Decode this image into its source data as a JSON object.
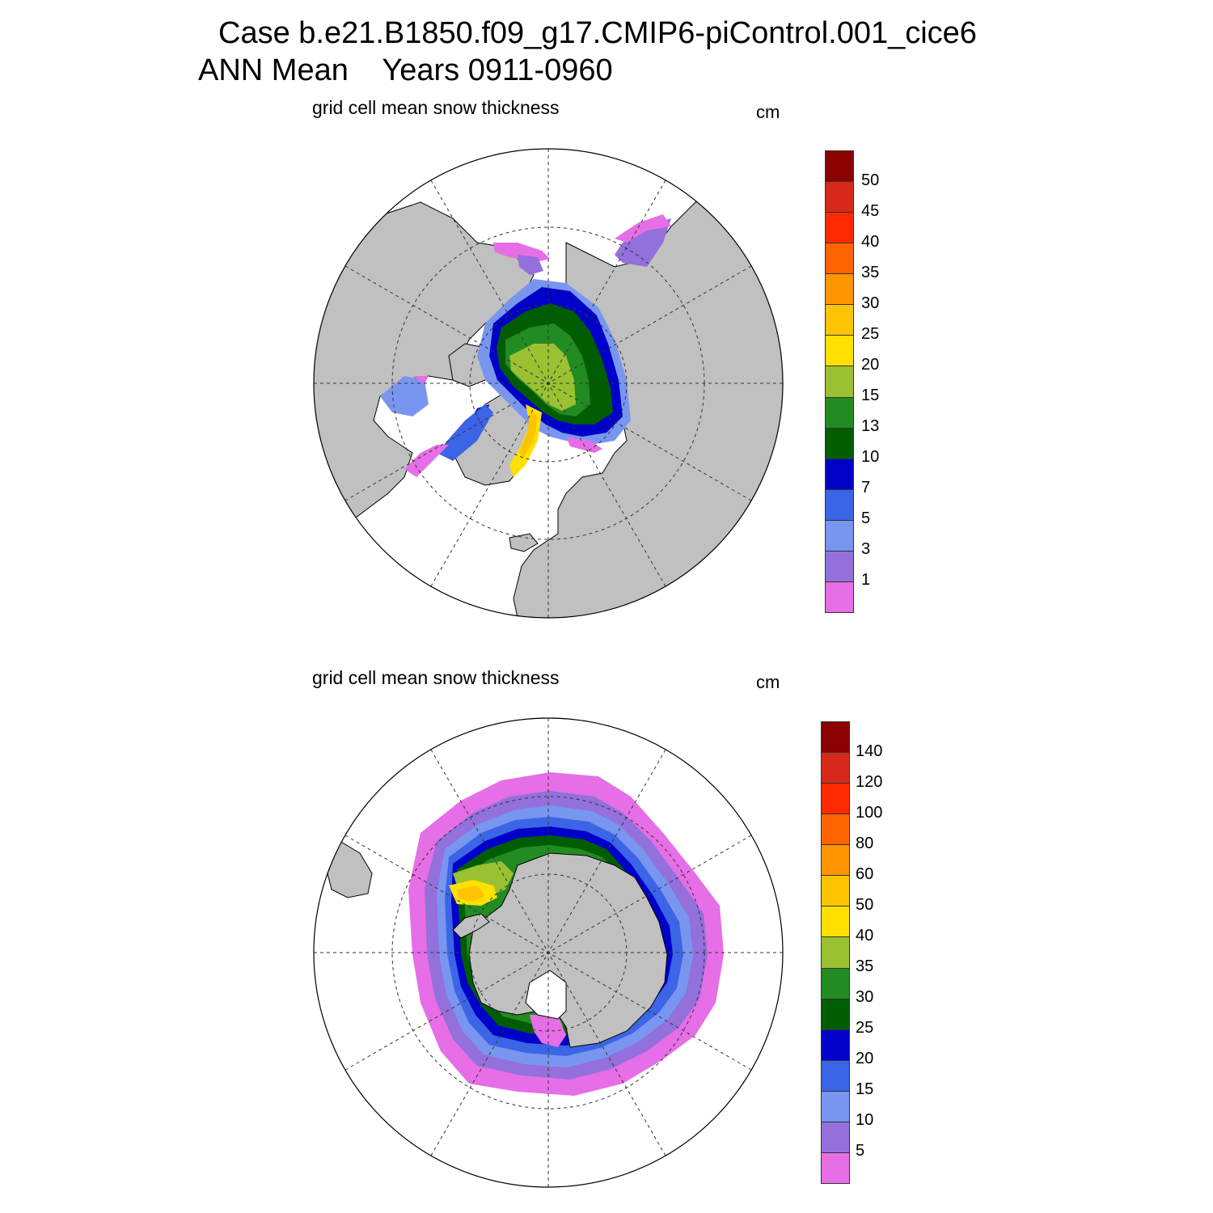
{
  "header": {
    "title_line1": "Case b.e21.B1850.f09_g17.CMIP6-piControl.001_cice6",
    "title_line2": "ANN Mean    Years 0911-0960"
  },
  "north": {
    "subtitle": "grid cell mean snow thickness",
    "units": "cm",
    "colorbar": {
      "colors": [
        "#8b0000",
        "#d7281b",
        "#ff2a00",
        "#ff6400",
        "#ff9600",
        "#ffc400",
        "#ffe000",
        "#9ac132",
        "#228b22",
        "#005e00",
        "#0000c8",
        "#3c64e6",
        "#7896f0",
        "#9370db",
        "#e66ee6"
      ],
      "labels": [
        "50",
        "45",
        "40",
        "35",
        "30",
        "25",
        "20",
        "15",
        "13",
        "10",
        "7",
        "5",
        "3",
        "1"
      ]
    }
  },
  "south": {
    "subtitle": "grid cell mean snow thickness",
    "units": "cm",
    "colorbar": {
      "colors": [
        "#8b0000",
        "#d7281b",
        "#ff2a00",
        "#ff6400",
        "#ff9600",
        "#ffc400",
        "#ffe000",
        "#9ac132",
        "#228b22",
        "#005e00",
        "#0000c8",
        "#3c64e6",
        "#7896f0",
        "#9370db",
        "#e66ee6"
      ],
      "labels": [
        "140",
        "120",
        "100",
        "80",
        "60",
        "50",
        "40",
        "35",
        "30",
        "25",
        "20",
        "15",
        "10",
        "5"
      ]
    }
  },
  "colors": {
    "land": "#c0c0c0",
    "ocean": "#ffffff"
  }
}
